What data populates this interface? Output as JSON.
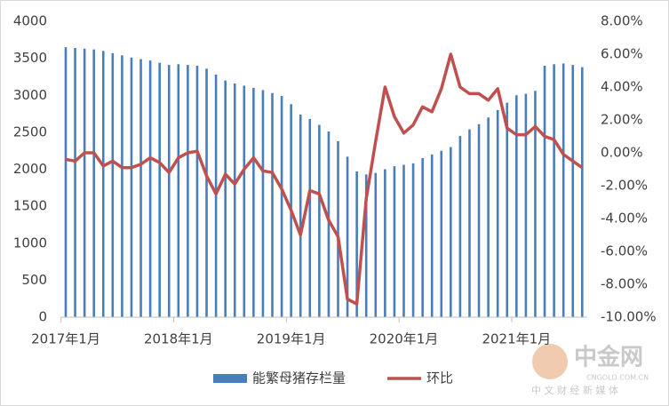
{
  "chart_data": {
    "type": "bar_line",
    "categories": [
      "2017年1月",
      null,
      null,
      null,
      null,
      null,
      null,
      null,
      null,
      null,
      null,
      null,
      "2018年1月",
      null,
      null,
      null,
      null,
      null,
      null,
      null,
      null,
      null,
      null,
      null,
      "2019年1月",
      null,
      null,
      null,
      null,
      null,
      null,
      null,
      null,
      null,
      null,
      null,
      "2020年1月",
      null,
      null,
      null,
      null,
      null,
      null,
      null,
      null,
      null,
      null,
      null,
      "2021年1月",
      null,
      null,
      null,
      null,
      null,
      null,
      null
    ],
    "series": [
      {
        "name": "能繁母猪存栏量",
        "type": "bar",
        "color": "#4a7ebb",
        "values": [
          3650,
          3640,
          3630,
          3620,
          3600,
          3570,
          3540,
          3510,
          3490,
          3470,
          3440,
          3410,
          3420,
          3410,
          3400,
          3360,
          3280,
          3200,
          3160,
          3130,
          3100,
          3070,
          3030,
          2990,
          2880,
          2740,
          2680,
          2600,
          2510,
          2380,
          2170,
          1970,
          1930,
          1950,
          2000,
          2040,
          2060,
          2080,
          2150,
          2200,
          2250,
          2300,
          2450,
          2540,
          2610,
          2700,
          2800,
          2900,
          3000,
          3020,
          3060,
          3400,
          3420,
          3430,
          3410,
          3380
        ]
      },
      {
        "name": "环比",
        "type": "line",
        "axis": "y2",
        "color": "#c0504d",
        "values": [
          -0.4,
          -0.5,
          0,
          0,
          -0.8,
          -0.5,
          -0.9,
          -0.9,
          -0.7,
          -0.3,
          -0.6,
          -1.2,
          -0.3,
          0,
          0.1,
          -1.4,
          -2.5,
          -1.3,
          -1.9,
          -1,
          -0.3,
          -1.1,
          -1.2,
          -2.2,
          -3.5,
          -5,
          -2.3,
          -2.5,
          -4.1,
          -5.1,
          -8.9,
          -9.2,
          -2.8,
          0.7,
          4,
          2.2,
          1.2,
          1.7,
          2.8,
          2.5,
          3.9,
          6,
          4,
          3.6,
          3.6,
          3.2,
          3.9,
          1.5,
          1.1,
          1.1,
          1.6,
          1,
          0.8,
          -0.1,
          -0.5,
          -0.9
        ]
      }
    ],
    "ylim": [
      0,
      4000
    ],
    "yticks": [
      0,
      500,
      1000,
      1500,
      2000,
      2500,
      3000,
      3500,
      4000
    ],
    "y2lim": [
      -10,
      8
    ],
    "y2ticks": [
      {
        "value": -10,
        "label": "-10.00%"
      },
      {
        "value": -8,
        "label": "-8.00%"
      },
      {
        "value": -6,
        "label": "-6.00%"
      },
      {
        "value": -4,
        "label": "-4.00%"
      },
      {
        "value": -2,
        "label": "-2.00%"
      },
      {
        "value": 0,
        "label": "0.00%"
      },
      {
        "value": 2,
        "label": "2.00%"
      },
      {
        "value": 4,
        "label": "4.00%"
      },
      {
        "value": 6,
        "label": "6.00%"
      },
      {
        "value": 8,
        "label": "8.00%"
      }
    ],
    "legend": "bottom",
    "watermark": [
      "中金网",
      "CNGOLD.COM.CN",
      "中 文 财 经 新 媒 体"
    ]
  }
}
